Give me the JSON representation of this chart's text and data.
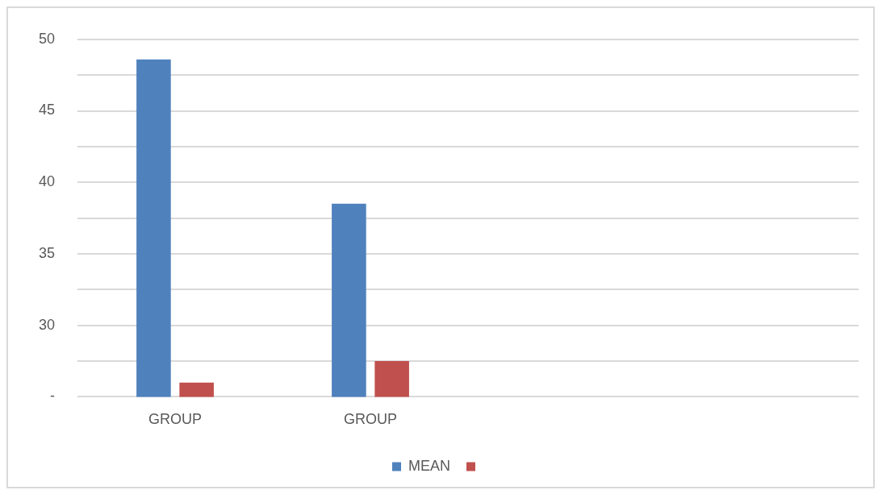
{
  "chart_data": {
    "type": "bar",
    "categories": [
      "GROUP",
      "GROUP",
      null,
      null
    ],
    "series": [
      {
        "name": "MEAN",
        "color": "#4f81bd",
        "values": [
          48.6,
          38.5,
          null,
          null
        ]
      },
      {
        "color": "#c0504d",
        "values": [
          26.0,
          27.5,
          null,
          null
        ]
      }
    ],
    "ylim": [
      25,
      50
    ],
    "yticks": [
      {
        "value": 25,
        "label": "-"
      },
      {
        "value": 27.5,
        "label": null
      },
      30,
      {
        "value": 32.5,
        "label": null
      },
      35,
      {
        "value": 37.5,
        "label": null
      },
      40,
      {
        "value": 42.5,
        "label": null
      },
      45,
      {
        "value": 47.5,
        "label": null
      },
      50
    ],
    "grid": "y",
    "legend": "bottom"
  }
}
